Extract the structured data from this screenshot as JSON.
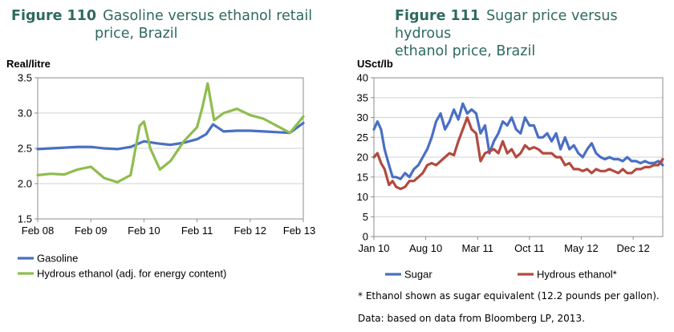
{
  "figure110": {
    "number": "Figure 110",
    "title_line1": "Gasoline versus ethanol retail",
    "title_line2": "price, Brazil"
  },
  "figure111": {
    "number": "Figure 111",
    "title_line1": "Sugar price versus hydrous",
    "title_line2": "ethanol price, Brazil"
  },
  "notes": {
    "footnote": "* Ethanol shown as sugar equivalent (12.2 pounds per gallon).",
    "source": "Data: based on data from Bloomberg LP, 2013."
  },
  "colors": {
    "blue": "#4a6fc4",
    "green": "#8fbd4e",
    "red": "#b34a3f",
    "axis": "#8c8c8c",
    "grid": "#d0d0d0"
  },
  "chart_data": [
    {
      "type": "line",
      "ylabel": "Real/litre",
      "xlim": [
        2008.0,
        2013.0
      ],
      "ylim": [
        1.5,
        3.5
      ],
      "yticks": [
        1.5,
        2.0,
        2.5,
        3.0,
        3.5
      ],
      "ytick_labels": [
        "1.5",
        "2.0",
        "2.5",
        "3.0",
        "3.5"
      ],
      "xticks": [
        2008.0,
        2009.0,
        2010.0,
        2011.0,
        2012.0,
        2013.0
      ],
      "xtick_labels": [
        "Feb 08",
        "Feb 09",
        "Feb 10",
        "Feb 11",
        "Feb 12",
        "Feb 13"
      ],
      "grid": true,
      "legend": "bottom",
      "series": [
        {
          "name": "Gasoline",
          "color": "blue",
          "x": [
            2008.0,
            2008.25,
            2008.5,
            2008.75,
            2009.0,
            2009.25,
            2009.5,
            2009.75,
            2010.0,
            2010.25,
            2010.5,
            2010.75,
            2011.0,
            2011.17,
            2011.3,
            2011.5,
            2011.75,
            2012.0,
            2012.25,
            2012.5,
            2012.75,
            2013.0
          ],
          "y": [
            2.49,
            2.5,
            2.51,
            2.52,
            2.52,
            2.5,
            2.49,
            2.52,
            2.6,
            2.57,
            2.55,
            2.58,
            2.63,
            2.7,
            2.84,
            2.74,
            2.75,
            2.75,
            2.74,
            2.73,
            2.72,
            2.86
          ]
        },
        {
          "name": "Hydrous ethanol (adj. for energy content)",
          "color": "green",
          "x": [
            2008.0,
            2008.25,
            2008.5,
            2008.75,
            2009.0,
            2009.25,
            2009.5,
            2009.75,
            2009.92,
            2010.0,
            2010.12,
            2010.3,
            2010.5,
            2010.75,
            2011.0,
            2011.1,
            2011.2,
            2011.32,
            2011.5,
            2011.75,
            2012.0,
            2012.25,
            2012.5,
            2012.75,
            2013.0
          ],
          "y": [
            2.12,
            2.14,
            2.13,
            2.2,
            2.24,
            2.08,
            2.02,
            2.12,
            2.82,
            2.88,
            2.5,
            2.2,
            2.32,
            2.6,
            2.8,
            3.08,
            3.42,
            2.9,
            3.0,
            3.06,
            2.97,
            2.92,
            2.82,
            2.72,
            2.95
          ]
        }
      ]
    },
    {
      "type": "line",
      "ylabel": "USct/lb",
      "xlim": [
        2010.0,
        2013.25
      ],
      "ylim": [
        0,
        40
      ],
      "yticks": [
        0,
        5,
        10,
        15,
        20,
        25,
        30,
        35,
        40
      ],
      "ytick_labels": [
        "0",
        "5",
        "10",
        "15",
        "20",
        "25",
        "30",
        "35",
        "40"
      ],
      "xticks": [
        2010.0,
        2010.583,
        2011.167,
        2011.75,
        2012.333,
        2012.917
      ],
      "xtick_labels": [
        "Jan 10",
        "Aug 10",
        "Mar 11",
        "Oct 11",
        "May 12",
        "Dec 12"
      ],
      "grid": true,
      "legend": "bottom",
      "series": [
        {
          "name": "Sugar",
          "color": "blue",
          "x": [
            2010.0,
            2010.04,
            2010.08,
            2010.12,
            2010.17,
            2010.21,
            2010.25,
            2010.3,
            2010.35,
            2010.4,
            2010.45,
            2010.5,
            2010.55,
            2010.6,
            2010.65,
            2010.7,
            2010.75,
            2010.8,
            2010.85,
            2010.9,
            2010.95,
            2011.0,
            2011.05,
            2011.1,
            2011.15,
            2011.2,
            2011.25,
            2011.3,
            2011.35,
            2011.4,
            2011.45,
            2011.5,
            2011.55,
            2011.6,
            2011.65,
            2011.7,
            2011.75,
            2011.8,
            2011.85,
            2011.9,
            2011.95,
            2012.0,
            2012.05,
            2012.1,
            2012.15,
            2012.2,
            2012.25,
            2012.3,
            2012.35,
            2012.4,
            2012.45,
            2012.5,
            2012.55,
            2012.6,
            2012.65,
            2012.7,
            2012.75,
            2012.8,
            2012.85,
            2012.9,
            2012.95,
            2013.0,
            2013.05,
            2013.1,
            2013.15,
            2013.2,
            2013.25
          ],
          "y": [
            27,
            29,
            27,
            22,
            18,
            15,
            15,
            14.5,
            16,
            15,
            17,
            18,
            20,
            22,
            25,
            29,
            31,
            27,
            29,
            32,
            29.5,
            33.5,
            31,
            32,
            31,
            26,
            28,
            21,
            24,
            26,
            29,
            28,
            30,
            27,
            26,
            30,
            28,
            28,
            25,
            25,
            26,
            24,
            26,
            22,
            25,
            22,
            23,
            21,
            20,
            22,
            23.5,
            21,
            20,
            19.5,
            20,
            19.5,
            19.5,
            19,
            20,
            19,
            19,
            18.5,
            19,
            18.5,
            18.5,
            19,
            18
          ]
        },
        {
          "name": "Hydrous ethanol*",
          "color": "red",
          "x": [
            2010.0,
            2010.04,
            2010.08,
            2010.12,
            2010.17,
            2010.21,
            2010.25,
            2010.3,
            2010.35,
            2010.4,
            2010.45,
            2010.5,
            2010.55,
            2010.6,
            2010.65,
            2010.7,
            2010.75,
            2010.8,
            2010.85,
            2010.9,
            2010.95,
            2011.0,
            2011.05,
            2011.1,
            2011.15,
            2011.2,
            2011.25,
            2011.3,
            2011.35,
            2011.4,
            2011.45,
            2011.5,
            2011.55,
            2011.6,
            2011.65,
            2011.7,
            2011.75,
            2011.8,
            2011.85,
            2011.9,
            2011.95,
            2012.0,
            2012.05,
            2012.1,
            2012.15,
            2012.2,
            2012.25,
            2012.3,
            2012.35,
            2012.4,
            2012.45,
            2012.5,
            2012.55,
            2012.6,
            2012.65,
            2012.7,
            2012.75,
            2012.8,
            2012.85,
            2012.9,
            2012.95,
            2013.0,
            2013.05,
            2013.1,
            2013.15,
            2013.2,
            2013.25
          ],
          "y": [
            20,
            21,
            18.5,
            17,
            13,
            14,
            12.5,
            12,
            12.5,
            14,
            14,
            15,
            16,
            18,
            18.5,
            18,
            19,
            20,
            21,
            20.5,
            24,
            27,
            30,
            27,
            26,
            19,
            21,
            21.5,
            22,
            21,
            24,
            21,
            22,
            20,
            21,
            23,
            22,
            22.5,
            22,
            21,
            21,
            21,
            20,
            20,
            18,
            18.5,
            17,
            17,
            16.5,
            17,
            16,
            17,
            16.5,
            16.5,
            17,
            16.5,
            16,
            17,
            16,
            16,
            17,
            17,
            17.5,
            17.5,
            18,
            18,
            19.5
          ]
        }
      ]
    }
  ]
}
